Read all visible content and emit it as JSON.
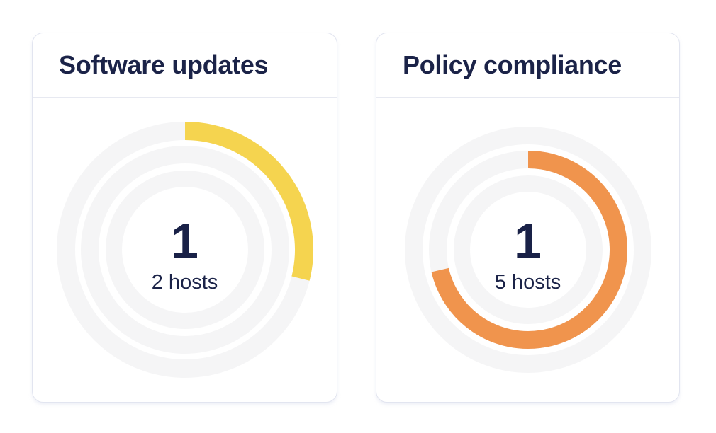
{
  "theme": {
    "background": "#ffffff",
    "card_border": "#e2e5f0",
    "header_divider": "#e7e9f1",
    "ring_track": "#f5f5f6",
    "accent_yellow": "#f5d44f",
    "accent_orange": "#f0944d",
    "text_navy": "#1b2348",
    "number_navy": "#192147"
  },
  "chart_data": [
    {
      "type": "donut",
      "title": "Software updates",
      "center_value": "1",
      "center_label": "2 hosts",
      "legend": "none",
      "rings": [
        {
          "name": "outer",
          "radius": 168,
          "thickness": 26,
          "track_color": "#f5f5f6",
          "arc": {
            "color": "#f5d44f",
            "start_deg": 0,
            "end_deg": 104,
            "fraction": 0.29
          }
        },
        {
          "name": "middle",
          "radius": 134.5,
          "thickness": 25,
          "track_color": "#f5f5f6"
        },
        {
          "name": "inner",
          "radius": 100.5,
          "thickness": 23,
          "track_color": "#f5f5f6"
        }
      ]
    },
    {
      "type": "donut",
      "title": "Policy compliance",
      "center_value": "1",
      "center_label": "5 hosts",
      "legend": "none",
      "rings": [
        {
          "name": "outer",
          "radius": 161.5,
          "thickness": 25,
          "track_color": "#f5f5f6"
        },
        {
          "name": "middle",
          "radius": 127.5,
          "thickness": 25,
          "track_color": "#f5f5f6",
          "arc": {
            "color": "#f0944d",
            "start_deg": 0,
            "end_deg": 257,
            "fraction": 0.71
          }
        },
        {
          "name": "inner",
          "radius": 93.5,
          "thickness": 23,
          "track_color": "#f5f5f6"
        }
      ]
    }
  ]
}
